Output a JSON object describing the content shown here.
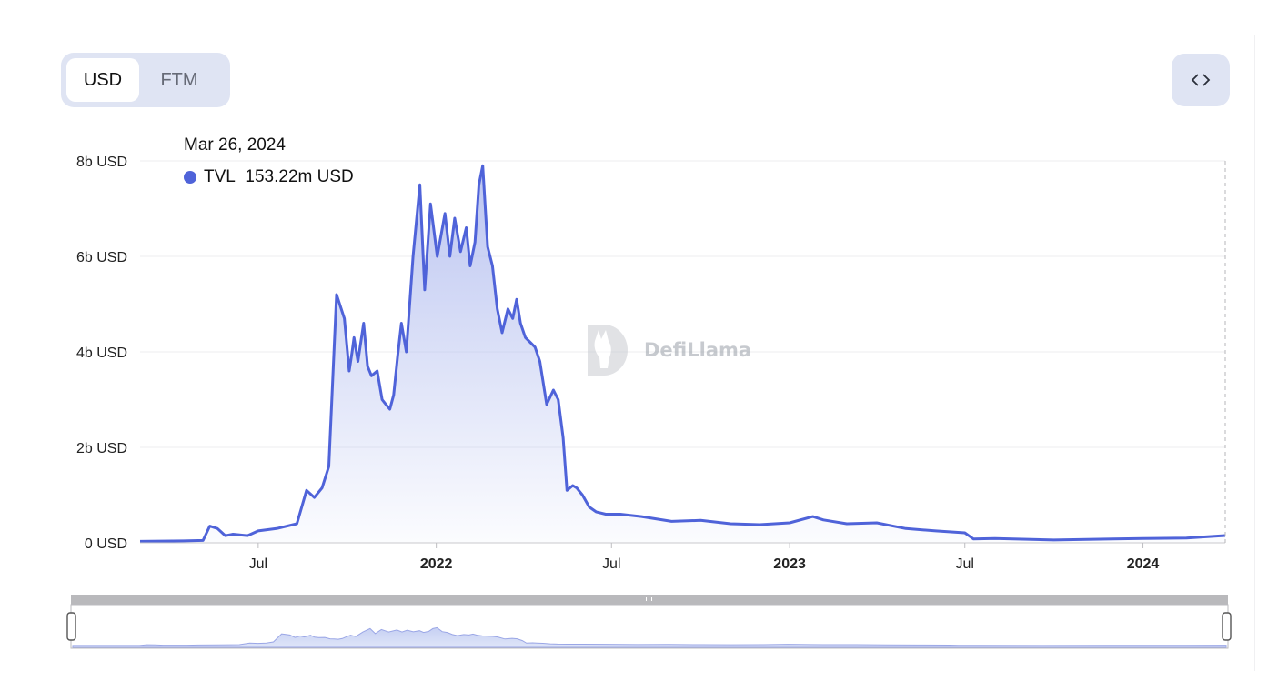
{
  "toggle": {
    "options": [
      {
        "label": "USD",
        "active": true
      },
      {
        "label": "FTM",
        "active": false
      }
    ]
  },
  "embed_icon": "code-brackets-icon",
  "tooltip": {
    "date": "Mar 26, 2024",
    "series_name": "TVL",
    "value": "153.22m USD"
  },
  "watermark": {
    "text": "DefiLlama",
    "icon": "llama-logo-icon"
  },
  "colors": {
    "line": "#4f63d9",
    "area_top": "#b8c2f0",
    "toggle_bg": "#dfe4f3"
  },
  "chart_data": {
    "type": "area",
    "title": "",
    "xlabel": "",
    "ylabel": "",
    "ylim": [
      0,
      8000000000
    ],
    "xlim": [
      "2021-03-01",
      "2024-03-26"
    ],
    "y_ticks": [
      {
        "value": 0,
        "label": "0 USD"
      },
      {
        "value": 2000000000,
        "label": "2b USD"
      },
      {
        "value": 4000000000,
        "label": "4b USD"
      },
      {
        "value": 6000000000,
        "label": "6b USD"
      },
      {
        "value": 8000000000,
        "label": "8b USD"
      }
    ],
    "x_ticks": [
      {
        "date": "2021-07-01",
        "label": "Jul",
        "bold": false
      },
      {
        "date": "2022-01-01",
        "label": "2022",
        "bold": true
      },
      {
        "date": "2022-07-01",
        "label": "Jul",
        "bold": false
      },
      {
        "date": "2023-01-01",
        "label": "2023",
        "bold": true
      },
      {
        "date": "2023-07-01",
        "label": "Jul",
        "bold": false
      },
      {
        "date": "2024-01-01",
        "label": "2024",
        "bold": true
      }
    ],
    "grid": true,
    "legend": "none",
    "crosshair_date": "2024-03-26",
    "series": [
      {
        "name": "TVL",
        "x": [
          "2021-03-01",
          "2021-04-15",
          "2021-05-05",
          "2021-05-12",
          "2021-05-20",
          "2021-05-28",
          "2021-06-05",
          "2021-06-20",
          "2021-07-01",
          "2021-07-20",
          "2021-08-10",
          "2021-08-20",
          "2021-08-28",
          "2021-09-05",
          "2021-09-12",
          "2021-09-20",
          "2021-09-28",
          "2021-10-03",
          "2021-10-06",
          "2021-10-08",
          "2021-10-12",
          "2021-10-18",
          "2021-10-22",
          "2021-10-26",
          "2021-11-01",
          "2021-11-06",
          "2021-11-10",
          "2021-11-14",
          "2021-11-18",
          "2021-11-22",
          "2021-11-26",
          "2021-12-01",
          "2021-12-08",
          "2021-12-15",
          "2021-12-20",
          "2021-12-26",
          "2022-01-02",
          "2022-01-10",
          "2022-01-15",
          "2022-01-20",
          "2022-01-26",
          "2022-02-01",
          "2022-02-05",
          "2022-02-10",
          "2022-02-14",
          "2022-02-18",
          "2022-02-23",
          "2022-02-28",
          "2022-03-05",
          "2022-03-10",
          "2022-03-16",
          "2022-03-21",
          "2022-03-25",
          "2022-03-29",
          "2022-04-03",
          "2022-04-08",
          "2022-04-13",
          "2022-04-18",
          "2022-04-25",
          "2022-05-02",
          "2022-05-07",
          "2022-05-12",
          "2022-05-16",
          "2022-05-22",
          "2022-05-26",
          "2022-06-01",
          "2022-06-08",
          "2022-06-15",
          "2022-06-25",
          "2022-07-10",
          "2022-08-01",
          "2022-09-01",
          "2022-10-01",
          "2022-11-01",
          "2022-12-01",
          "2023-01-01",
          "2023-01-25",
          "2023-02-05",
          "2023-03-01",
          "2023-04-01",
          "2023-05-01",
          "2023-06-01",
          "2023-07-01",
          "2023-07-10",
          "2023-08-01",
          "2023-10-01",
          "2023-12-01",
          "2024-01-01",
          "2024-02-15",
          "2024-03-26"
        ],
        "values": [
          30000000,
          40000000,
          50000000,
          350000000,
          300000000,
          150000000,
          180000000,
          150000000,
          250000000,
          300000000,
          400000000,
          1100000000,
          950000000,
          1150000000,
          1600000000,
          5200000000,
          4700000000,
          3600000000,
          4000000000,
          4300000000,
          3800000000,
          4600000000,
          3700000000,
          3500000000,
          3600000000,
          3000000000,
          2900000000,
          2800000000,
          3100000000,
          3900000000,
          4600000000,
          4000000000,
          6000000000,
          7500000000,
          5300000000,
          7100000000,
          6000000000,
          6900000000,
          6000000000,
          6800000000,
          6100000000,
          6600000000,
          5800000000,
          6300000000,
          7500000000,
          7900000000,
          6200000000,
          5800000000,
          4900000000,
          4400000000,
          4900000000,
          4700000000,
          5100000000,
          4600000000,
          4300000000,
          4200000000,
          4100000000,
          3800000000,
          2900000000,
          3200000000,
          3000000000,
          2200000000,
          1100000000,
          1200000000,
          1150000000,
          1000000000,
          750000000,
          650000000,
          600000000,
          600000000,
          550000000,
          450000000,
          470000000,
          400000000,
          380000000,
          420000000,
          550000000,
          480000000,
          400000000,
          420000000,
          300000000,
          250000000,
          210000000,
          80000000,
          90000000,
          60000000,
          80000000,
          90000000,
          100000000,
          153220000
        ]
      }
    ]
  },
  "navigator": {
    "handle_icon": "grip-icon"
  }
}
